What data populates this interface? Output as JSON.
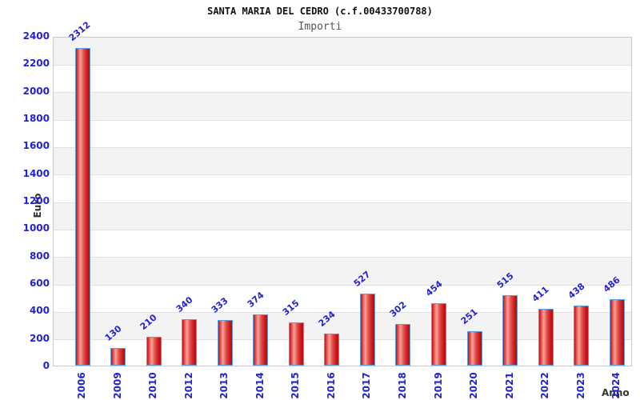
{
  "chart_data": {
    "type": "bar",
    "title": "SANTA MARIA DEL CEDRO (c.f.00433700788)",
    "subtitle": "Importi",
    "xlabel": "Anno",
    "ylabel": "Euro",
    "categories": [
      "2006",
      "2009",
      "2010",
      "2012",
      "2013",
      "2014",
      "2015",
      "2016",
      "2017",
      "2018",
      "2019",
      "2020",
      "2021",
      "2022",
      "2023",
      "2024"
    ],
    "values": [
      2312,
      130,
      210,
      340,
      333,
      374,
      315,
      234,
      527,
      302,
      454,
      251,
      515,
      411,
      438,
      486
    ],
    "ylim": [
      0,
      2400
    ],
    "ytick_step": 200,
    "legend": "none",
    "grid": "horizontal-bands",
    "colors": {
      "bar_edge_fill": "#c6101a",
      "bar_center_fill": "#f6a39b",
      "bar_border": "#5e9edd",
      "tick_label": "#2323cc",
      "value_label": "#2323cc",
      "title": "#111111",
      "subtitle": "#555555",
      "axis_label": "#333333",
      "band": "#f3f3f3",
      "gridline": "#e0e0e0",
      "frame": "#c9c9c9"
    }
  }
}
